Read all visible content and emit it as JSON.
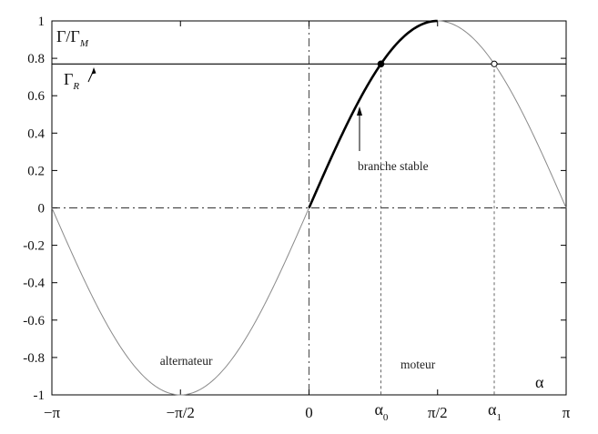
{
  "chart_data": {
    "type": "line",
    "xlabel": "α",
    "x_range": [
      -3.14159,
      3.14159
    ],
    "ylim": [
      -1,
      1
    ],
    "grid": false,
    "x_ticks": [
      {
        "value": -3.14159,
        "label": "−π"
      },
      {
        "value": -1.5708,
        "label": "−π/2"
      },
      {
        "value": 0,
        "label": "0"
      },
      {
        "value": 1.5708,
        "label": "π/2"
      },
      {
        "value": 3.14159,
        "label": "π"
      }
    ],
    "y_ticks": [
      {
        "value": 1,
        "label": "1"
      },
      {
        "value": 0.8,
        "label": "0.8"
      },
      {
        "value": 0.6,
        "label": "0.6"
      },
      {
        "value": 0.4,
        "label": "0.4"
      },
      {
        "value": 0.2,
        "label": "0.2"
      },
      {
        "value": 0,
        "label": "0"
      },
      {
        "value": -0.2,
        "label": "-0.2"
      },
      {
        "value": -0.4,
        "label": "-0.4"
      },
      {
        "value": -0.6,
        "label": "-0.6"
      },
      {
        "value": -0.8,
        "label": "-0.8"
      },
      {
        "value": -1,
        "label": "-1"
      }
    ],
    "curve": {
      "function": "sin",
      "x_min": -3.14159,
      "x_max": 3.14159,
      "color": "#8a8a8a"
    },
    "stable_branch": {
      "x_min": 0,
      "x_max": 1.5708,
      "color": "#000000",
      "label": "branche stable"
    },
    "reference_level": {
      "y": 0.77,
      "label_main": "Γ",
      "label_sub": "R"
    },
    "ratio_label": {
      "main": "Γ/Γ",
      "sub": "M"
    },
    "operating_points": [
      {
        "x": 0.8785,
        "y": 0.77,
        "filled": true,
        "label_main": "α",
        "label_sub": "0"
      },
      {
        "x": 2.2631,
        "y": 0.77,
        "filled": false,
        "label_main": "α",
        "label_sub": "1"
      }
    ],
    "annotations": [
      {
        "text": "alternateur",
        "x": -1.5,
        "y": -0.84
      },
      {
        "text": "moteur",
        "x": 1.33,
        "y": -0.86
      }
    ]
  }
}
